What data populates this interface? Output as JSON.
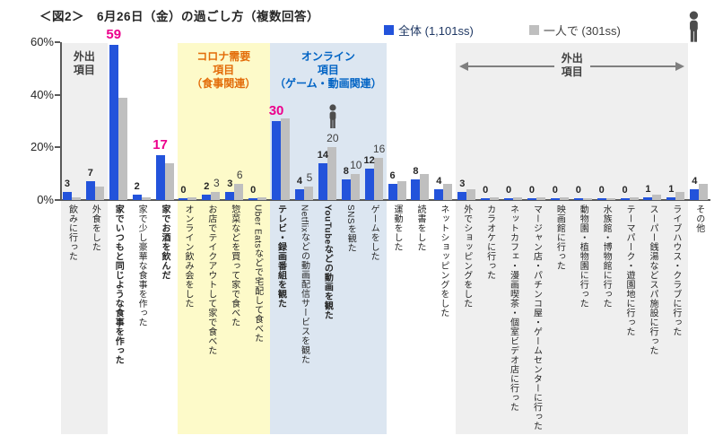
{
  "title": "＜図2＞　6月26日（金）の過ごし方（複数回答）",
  "legend": {
    "items": [
      {
        "label": "全体 (1,101ss)",
        "swatch_color": "#2353DB",
        "text_color": "#1F3864"
      },
      {
        "label": "一人で (301ss)",
        "swatch_color": "#BFBFBF",
        "text_color": "#404040"
      }
    ],
    "person_icon_color": "#4D4D4D"
  },
  "y_axis": {
    "tick_labels": [
      "60%",
      "40%",
      "20%",
      "0%"
    ],
    "tick_values": [
      60,
      40,
      20,
      0
    ],
    "max": 60
  },
  "sections": [
    {
      "name": "outing-left",
      "header_lines": [
        "外出",
        "項目"
      ],
      "bg": "#EFEFEF",
      "text_color": "#404040",
      "start": 0,
      "end": 1,
      "arrows": false
    },
    {
      "name": "corona-demand",
      "header_lines": [
        "コロナ需要",
        "項目",
        "（食事関連）"
      ],
      "bg": "#FDFAC9",
      "text_color": "#E36C09",
      "start": 5,
      "end": 8,
      "arrows": false
    },
    {
      "name": "online",
      "header_lines": [
        "オンライン",
        "項目",
        "（ゲーム・動画関連）"
      ],
      "bg": "#DCE6F1",
      "text_color": "#0063C4",
      "start": 9,
      "end": 13,
      "arrows": false
    },
    {
      "name": "outing-right",
      "header_lines": [
        "外出",
        "項目"
      ],
      "bg": "#EFEFEF",
      "text_color": "#404040",
      "start": 17,
      "end": 26,
      "arrows": true
    }
  ],
  "chart_data": {
    "type": "bar",
    "title": "＜図2＞　6月26日（金）の過ごし方（複数回答）",
    "xlabel": "",
    "ylabel": "%",
    "ylim": [
      0,
      60
    ],
    "grid": false,
    "legend_position": "top-right",
    "categories": [
      "飲みに行った",
      "外食をした",
      "家でいつもと同じような食事を作った",
      "家で少し豪華な食事を作った",
      "家でお酒を飲んだ",
      "オンライン飲み会をした",
      "お店でテイクアウトして家で食べた",
      "惣菜などを買って家で食べた",
      "Uber Eatsなどで宅配して食べた",
      "テレビ・録画番組を観た",
      "Netflixなどの動画配信サービスを観た",
      "YouTubeなどの動画を観た",
      "SNSを観た",
      "ゲームをした",
      "運動をした",
      "読書をした",
      "ネットショッピングをした",
      "外でショッピングをした",
      "カラオケに行った",
      "ネットカフェ・漫画喫茶・個室ビデオ店に行った",
      "マージャン店・パチンコ屋・ゲームセンターに行った",
      "映画館に行った",
      "動物園・植物園に行った",
      "水族館・博物館に行った",
      "テーマパーク・遊園地に行った",
      "スーパー銭湯などスパ施設に行った",
      "ライブハウス・クラブに行った",
      "その他"
    ],
    "series": [
      {
        "name": "全体 (1,101ss)",
        "color": "#2353DB",
        "values": [
          3,
          7,
          59,
          2,
          17,
          0,
          2,
          3,
          0,
          30,
          4,
          14,
          8,
          12,
          6,
          8,
          4,
          3,
          0,
          0,
          0,
          0,
          0,
          0,
          0,
          1,
          1,
          4
        ]
      },
      {
        "name": "一人で (301ss)",
        "color": "#BFBFBF",
        "values": [
          1,
          5,
          39,
          1,
          14,
          1,
          3,
          6,
          1,
          31,
          5,
          20,
          10,
          16,
          7,
          10,
          6,
          4,
          1,
          1,
          1,
          1,
          0,
          0,
          1,
          2,
          3,
          6
        ]
      }
    ],
    "zentai_labels_shown": "all",
    "hitori_label_indices": [
      6,
      7,
      10,
      11,
      12,
      13
    ],
    "pink_highlight_indices": [
      2,
      4,
      9
    ],
    "bold_category_indices": [
      2,
      4,
      9,
      11
    ],
    "person_annotation_index": 11
  },
  "colors": {
    "bar_zentai": "#2353DB",
    "bar_hitori": "#BFBFBF",
    "pink_label": "#EC008C",
    "axis": "#595959",
    "band_gray": "#EFEFEF",
    "band_yellow": "#FDFAC9",
    "band_blue": "#DCE6F1",
    "header_orange": "#E36C09",
    "header_blue": "#0063C4"
  }
}
